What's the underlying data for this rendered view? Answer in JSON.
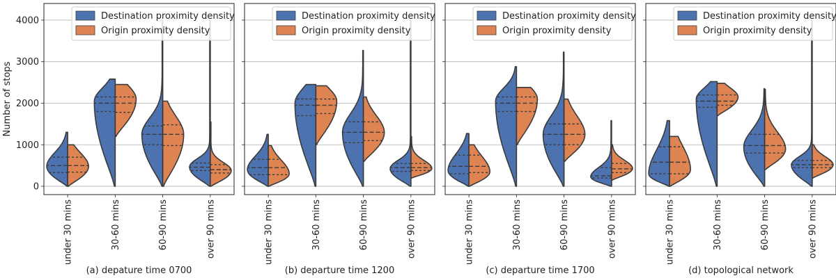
{
  "colors": {
    "destination": "#4c72b0",
    "origin": "#dd8452",
    "edge": "#3a3a3a",
    "grid": "#b0b0b0"
  },
  "chart_data": [
    {
      "type": "violin",
      "xlabel": "(a) depature time 0700",
      "ylabel": "Number of stops",
      "ylim": [
        -200,
        4400
      ],
      "yticks": [
        0,
        1000,
        2000,
        3000,
        4000
      ],
      "categories": [
        "under 30 mins",
        "30-60 mins",
        "60-90 mins",
        "over 90 mins"
      ],
      "grid": "horizontal",
      "legend_position": "top-right",
      "series": [
        {
          "name": "Destination proximity density",
          "side": "left",
          "color": "#4c72b0",
          "violins": [
            {
              "min": 0,
              "max": 1300,
              "peak": 480,
              "q1": 330,
              "median": 500,
              "q3": 700
            },
            {
              "min": 0,
              "max": 2580,
              "peak": 2050,
              "q1": 1800,
              "median": 2000,
              "q3": 2150
            },
            {
              "min": 0,
              "max": 4000,
              "peak": 1250,
              "q1": 1000,
              "median": 1250,
              "q3": 1450
            },
            {
              "min": 0,
              "max": 4000,
              "peak": 470,
              "q1": 380,
              "median": 460,
              "q3": 560
            }
          ]
        },
        {
          "name": "Origin proximity density",
          "side": "right",
          "color": "#dd8452",
          "violins": [
            {
              "min": 0,
              "max": 1000,
              "peak": 480,
              "q1": 340,
              "median": 500,
              "q3": 700
            },
            {
              "min": 1200,
              "max": 2450,
              "peak": 2100,
              "q1": 1780,
              "median": 2000,
              "q3": 2150
            },
            {
              "min": 0,
              "max": 2050,
              "peak": 1250,
              "q1": 980,
              "median": 1250,
              "q3": 1480
            },
            {
              "min": 0,
              "max": 1550,
              "peak": 380,
              "q1": 320,
              "median": 400,
              "q3": 520
            }
          ]
        }
      ]
    },
    {
      "type": "violin",
      "xlabel": "(b) departure time 1200",
      "ylabel": "",
      "ylim": [
        -200,
        4400
      ],
      "yticks": [
        0,
        1000,
        2000,
        3000,
        4000
      ],
      "categories": [
        "under 30 mins",
        "30-60 mins",
        "60-90 mins",
        "over 90 mins"
      ],
      "grid": "horizontal",
      "legend_position": "top-right",
      "series": [
        {
          "name": "Destination proximity density",
          "side": "left",
          "color": "#4c72b0",
          "violins": [
            {
              "min": 0,
              "max": 1250,
              "peak": 400,
              "q1": 280,
              "median": 450,
              "q3": 650
            },
            {
              "min": 0,
              "max": 2450,
              "peak": 2000,
              "q1": 1700,
              "median": 1950,
              "q3": 2100
            },
            {
              "min": 0,
              "max": 3270,
              "peak": 1300,
              "q1": 1050,
              "median": 1300,
              "q3": 1550
            },
            {
              "min": 0,
              "max": 4000,
              "peak": 430,
              "q1": 360,
              "median": 450,
              "q3": 550
            }
          ]
        },
        {
          "name": "Origin proximity density",
          "side": "right",
          "color": "#dd8452",
          "violins": [
            {
              "min": 0,
              "max": 980,
              "peak": 300,
              "q1": 280,
              "median": 450,
              "q3": 650
            },
            {
              "min": 1000,
              "max": 2420,
              "peak": 2050,
              "q1": 1750,
              "median": 1950,
              "q3": 2100
            },
            {
              "min": 600,
              "max": 2150,
              "peak": 1300,
              "q1": 1100,
              "median": 1300,
              "q3": 1550
            },
            {
              "min": 200,
              "max": 1200,
              "peak": 430,
              "q1": 380,
              "median": 450,
              "q3": 550
            }
          ]
        }
      ]
    },
    {
      "type": "violin",
      "xlabel": "(c) departure time 1700",
      "ylabel": "",
      "ylim": [
        -200,
        4400
      ],
      "yticks": [
        0,
        1000,
        2000,
        3000,
        4000
      ],
      "categories": [
        "under 30 mins",
        "30-60 mins",
        "60-90 mins",
        "over 90 mins"
      ],
      "grid": "horizontal",
      "legend_position": "top-right",
      "series": [
        {
          "name": "Destination proximity density",
          "side": "left",
          "color": "#4c72b0",
          "violins": [
            {
              "min": 0,
              "max": 1270,
              "peak": 380,
              "q1": 300,
              "median": 480,
              "q3": 750
            },
            {
              "min": 0,
              "max": 2880,
              "peak": 2050,
              "q1": 1800,
              "median": 2000,
              "q3": 2150
            },
            {
              "min": 0,
              "max": 3230,
              "peak": 1250,
              "q1": 1000,
              "median": 1250,
              "q3": 1500
            },
            {
              "min": 0,
              "max": 1580,
              "peak": 230,
              "q1": 200,
              "median": 250,
              "q3": 450
            }
          ]
        },
        {
          "name": "Origin proximity density",
          "side": "right",
          "color": "#dd8452",
          "violins": [
            {
              "min": 0,
              "max": 1000,
              "peak": 350,
              "q1": 330,
              "median": 480,
              "q3": 750
            },
            {
              "min": 1000,
              "max": 2380,
              "peak": 2100,
              "q1": 1800,
              "median": 2000,
              "q3": 2150
            },
            {
              "min": 600,
              "max": 2100,
              "peak": 1250,
              "q1": 1000,
              "median": 1250,
              "q3": 1500
            },
            {
              "min": 150,
              "max": 1000,
              "peak": 430,
              "q1": 330,
              "median": 420,
              "q3": 550
            }
          ]
        }
      ]
    },
    {
      "type": "violin",
      "xlabel": "(d) topological network",
      "ylabel": "",
      "ylim": [
        -200,
        4400
      ],
      "yticks": [
        0,
        1000,
        2000,
        3000,
        4000
      ],
      "categories": [
        "under 30 mins",
        "30-60 mins",
        "60-90 mins",
        "over 90 mins"
      ],
      "grid": "horizontal",
      "legend_position": "top-right",
      "series": [
        {
          "name": "Destination proximity density",
          "side": "left",
          "color": "#4c72b0",
          "violins": [
            {
              "min": 0,
              "max": 1580,
              "peak": 300,
              "q1": 300,
              "median": 580,
              "q3": 950
            },
            {
              "min": 0,
              "max": 2520,
              "peak": 2100,
              "q1": 1900,
              "median": 2050,
              "q3": 2200
            },
            {
              "min": 0,
              "max": 2350,
              "peak": 950,
              "q1": 800,
              "median": 980,
              "q3": 1250
            },
            {
              "min": 0,
              "max": 4000,
              "peak": 520,
              "q1": 450,
              "median": 520,
              "q3": 620
            }
          ]
        },
        {
          "name": "Origin proximity density",
          "side": "right",
          "color": "#dd8452",
          "violins": [
            {
              "min": 0,
              "max": 1200,
              "peak": 400,
              "q1": 300,
              "median": 580,
              "q3": 950
            },
            {
              "min": 1700,
              "max": 2480,
              "peak": 2150,
              "q1": 1950,
              "median": 2050,
              "q3": 2200
            },
            {
              "min": 400,
              "max": 2330,
              "peak": 900,
              "q1": 800,
              "median": 980,
              "q3": 1250
            },
            {
              "min": 200,
              "max": 1000,
              "peak": 520,
              "q1": 450,
              "median": 520,
              "q3": 620
            }
          ]
        }
      ]
    }
  ]
}
